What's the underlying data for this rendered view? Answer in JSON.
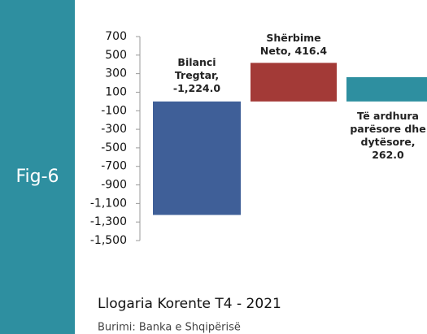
{
  "chart_data": {
    "type": "bar",
    "figure_label": "Fig-6",
    "title": "Llogaria Korente T4 - 2021",
    "source": "Burimi: Banka e Shqipërisë",
    "categories": [
      "Bilanci Tregtar",
      "Shërbime Neto",
      "Të ardhura parësore dhe dytësore"
    ],
    "values": [
      -1224.0,
      416.4,
      262.0
    ],
    "value_labels": [
      "Bilanci Tregtar, -1,224.0",
      "Shërbime Neto, 416.4",
      "Të ardhura parësore dhe dytësore, 262.0"
    ],
    "colors": [
      "#3f5f98",
      "#a33a37",
      "#2e8fa0"
    ],
    "ylim": [
      -1500,
      700
    ],
    "yticks": [
      700,
      500,
      300,
      100,
      -100,
      -300,
      -500,
      -700,
      -900,
      {
        "value": -1100,
        "label": "-1,100"
      },
      {
        "value": -1300,
        "label": "-1,300"
      },
      {
        "value": -1500,
        "label": "-1,500"
      }
    ],
    "grid": false
  }
}
